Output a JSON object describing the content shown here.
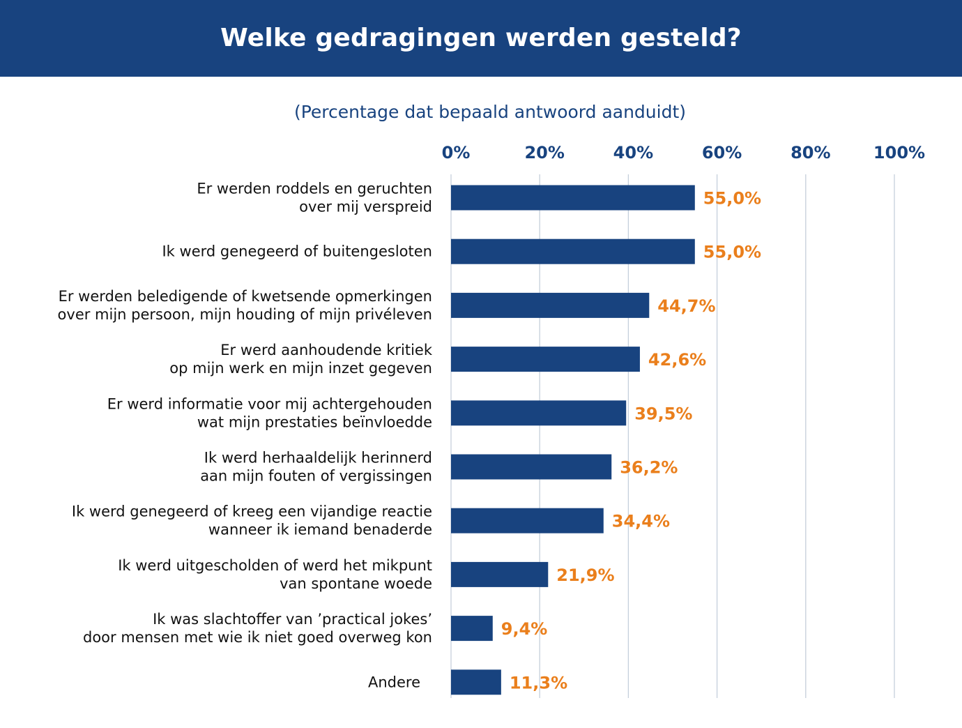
{
  "header": {
    "title": "Welke gedragingen werden gesteld?"
  },
  "colors": {
    "header_bg": "#18437f",
    "bar": "#18437f",
    "value_label": "#ea7f1c",
    "gridline": "#c5cfdb"
  },
  "chart_data": {
    "type": "bar",
    "orientation": "horizontal",
    "title": "Welke gedragingen werden gesteld?",
    "subtitle": "(Percentage dat bepaald antwoord aanduidt)",
    "xlim": [
      0,
      100
    ],
    "x_ticks": [
      "0%",
      "20%",
      "40%",
      "60%",
      "80%",
      "100%"
    ],
    "x_tick_values": [
      0,
      20,
      40,
      60,
      80,
      100
    ],
    "grid": true,
    "categories": [
      [
        "Er werden roddels en geruchten",
        "over mij verspreid"
      ],
      [
        "Ik werd genegeerd of buitengesloten"
      ],
      [
        "Er werden beledigende of kwetsende opmerkingen",
        "over mijn persoon, mijn houding of mijn privéleven"
      ],
      [
        "Er werd aanhoudende kritiek",
        "op mijn werk en mijn inzet gegeven"
      ],
      [
        "Er werd informatie voor mij achtergehouden",
        "wat mijn prestaties beïnvloedde"
      ],
      [
        "Ik werd herhaaldelijk herinnerd",
        "aan mijn fouten of vergissingen"
      ],
      [
        "Ik werd genegeerd of kreeg een vijandige reactie",
        "wanneer ik iemand benaderde"
      ],
      [
        "Ik werd uitgescholden of werd het mikpunt",
        "van spontane woede"
      ],
      [
        "Ik was slachtoffer van ’practical jokes’",
        "door mensen met wie ik niet goed overweg kon"
      ],
      [
        "Andere"
      ]
    ],
    "values": [
      55.0,
      55.0,
      44.7,
      42.6,
      39.5,
      36.2,
      34.4,
      21.9,
      9.4,
      11.3
    ],
    "value_labels": [
      "55,0%",
      "55,0%",
      "44,7%",
      "42,6%",
      "39,5%",
      "36,2%",
      "34,4%",
      "21,9%",
      "9,4%",
      "11,3%"
    ]
  }
}
